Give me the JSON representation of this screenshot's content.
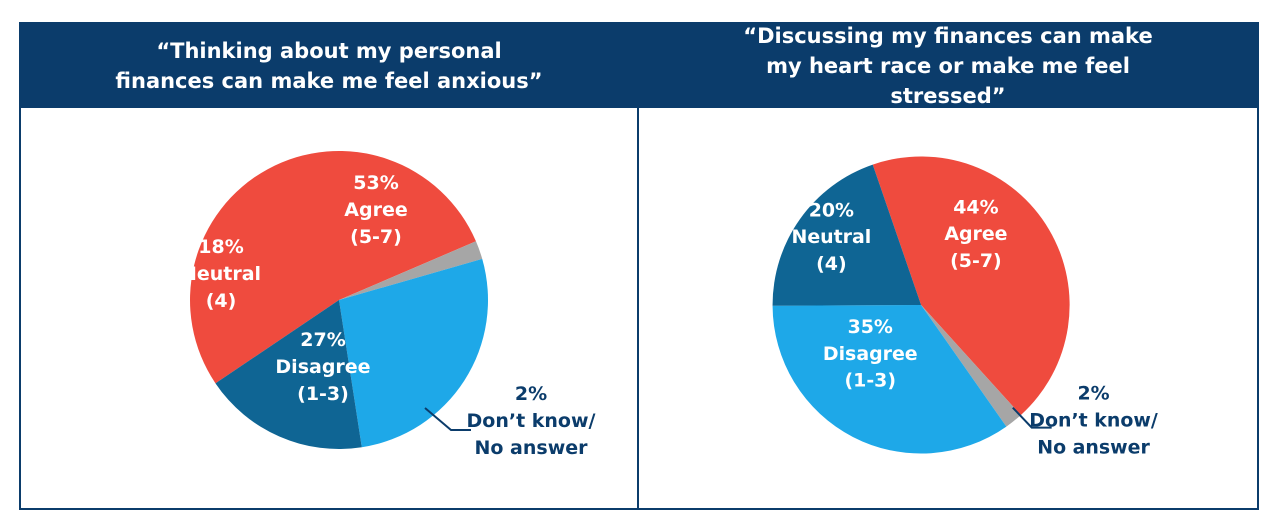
{
  "chart_data": [
    {
      "type": "pie",
      "title": "“Thinking about my personal finances can make me feel anxious”",
      "slices": [
        {
          "key": "agree",
          "pct": "53%",
          "label1": "Agree",
          "label2": "(5-7)",
          "value": 53,
          "color": "#ef4b3e",
          "text_color": "#ffffff"
        },
        {
          "key": "dontknow",
          "pct": "2%",
          "label1": "Don’t know/",
          "label2": "No answer",
          "value": 2,
          "color": "#a6a6a6",
          "text_color": "#0b3c6b"
        },
        {
          "key": "disagree",
          "pct": "27%",
          "label1": "Disagree",
          "label2": "(1-3)",
          "value": 27,
          "color": "#1ea8e8",
          "text_color": "#ffffff"
        },
        {
          "key": "neutral",
          "pct": "18%",
          "label1": "Neutral",
          "label2": "(4)",
          "value": 18,
          "color": "#0f6594",
          "text_color": "#ffffff"
        }
      ]
    },
    {
      "type": "pie",
      "title": "“Discussing my finances can make my heart race or make me feel stressed”",
      "slices": [
        {
          "key": "agree",
          "pct": "44%",
          "label1": "Agree",
          "label2": "(5-7)",
          "value": 44,
          "color": "#ef4b3e",
          "text_color": "#ffffff"
        },
        {
          "key": "dontknow",
          "pct": "2%",
          "label1": "Don’t know/",
          "label2": "No answer",
          "value": 2,
          "color": "#a6a6a6",
          "text_color": "#0b3c6b"
        },
        {
          "key": "disagree",
          "pct": "35%",
          "label1": "Disagree",
          "label2": "(1-3)",
          "value": 35,
          "color": "#1ea8e8",
          "text_color": "#ffffff"
        },
        {
          "key": "neutral",
          "pct": "20%",
          "label1": "Neutral",
          "label2": "(4)",
          "value": 20,
          "color": "#0f6594",
          "text_color": "#ffffff"
        }
      ]
    }
  ]
}
